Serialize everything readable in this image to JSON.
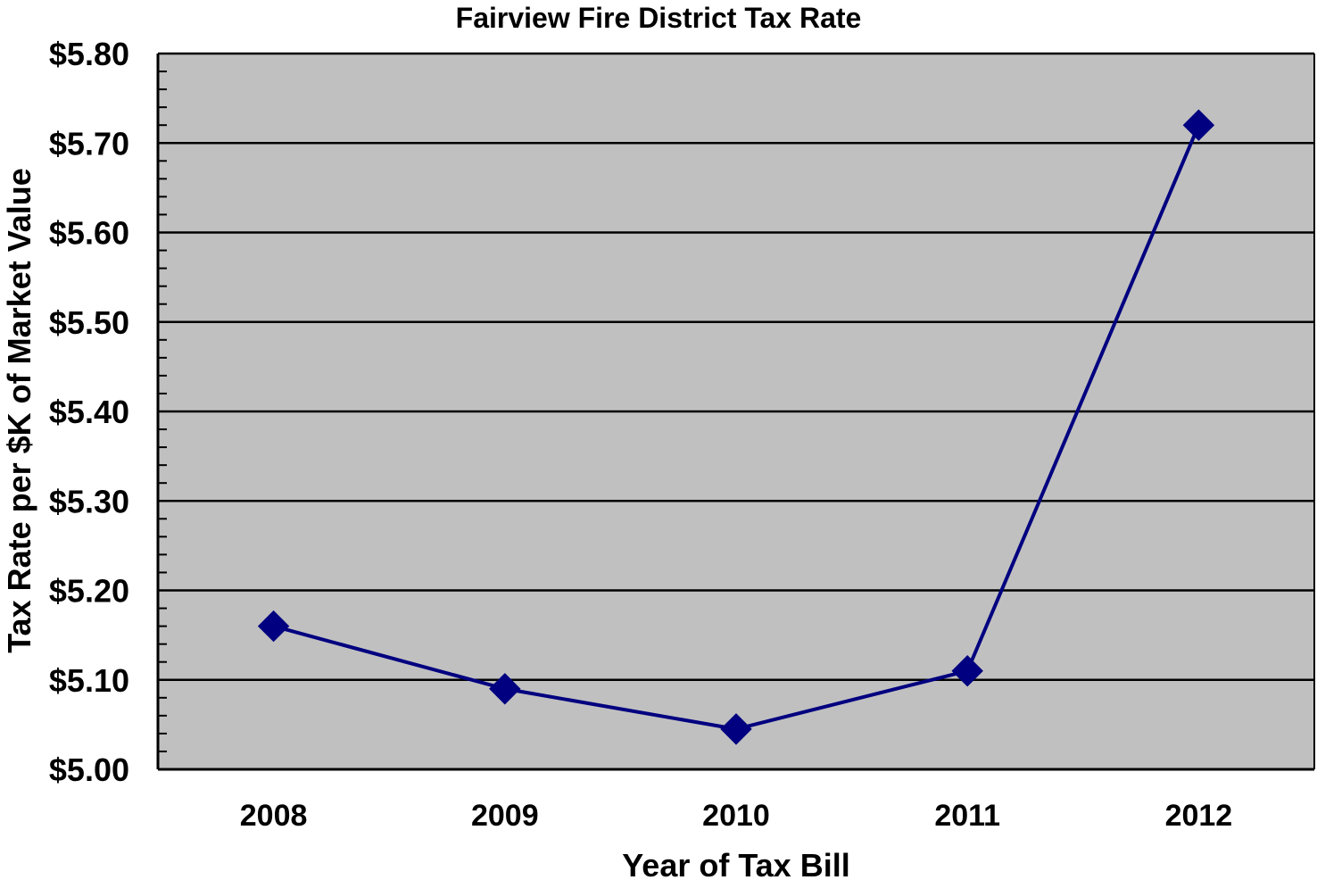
{
  "colors": {
    "plot_background": "#c0c0c0",
    "page_background": "#ffffff",
    "gridline": "#000000",
    "series": "#000080",
    "text": "#000000"
  },
  "chart_data": {
    "type": "line",
    "title": "Fairview Fire District Tax Rate",
    "xlabel": "Year of Tax Bill",
    "ylabel": "Tax Rate per $K of Market Value",
    "categories": [
      "2008",
      "2009",
      "2010",
      "2011",
      "2012"
    ],
    "series": [
      {
        "marker": "diamond",
        "values": [
          5.16,
          5.09,
          5.045,
          5.11,
          5.72
        ]
      }
    ],
    "ylim": [
      5.0,
      5.8
    ],
    "yticks": [
      5.0,
      5.1,
      5.2,
      5.3,
      5.4,
      5.5,
      5.6,
      5.7,
      5.8
    ],
    "ytick_labels": [
      "$5.00",
      "$5.10",
      "$5.20",
      "$5.30",
      "$5.40",
      "$5.50",
      "$5.60",
      "$5.70",
      "$5.80"
    ],
    "minor_tick_step": 0.02,
    "grid": true,
    "legend": false
  }
}
